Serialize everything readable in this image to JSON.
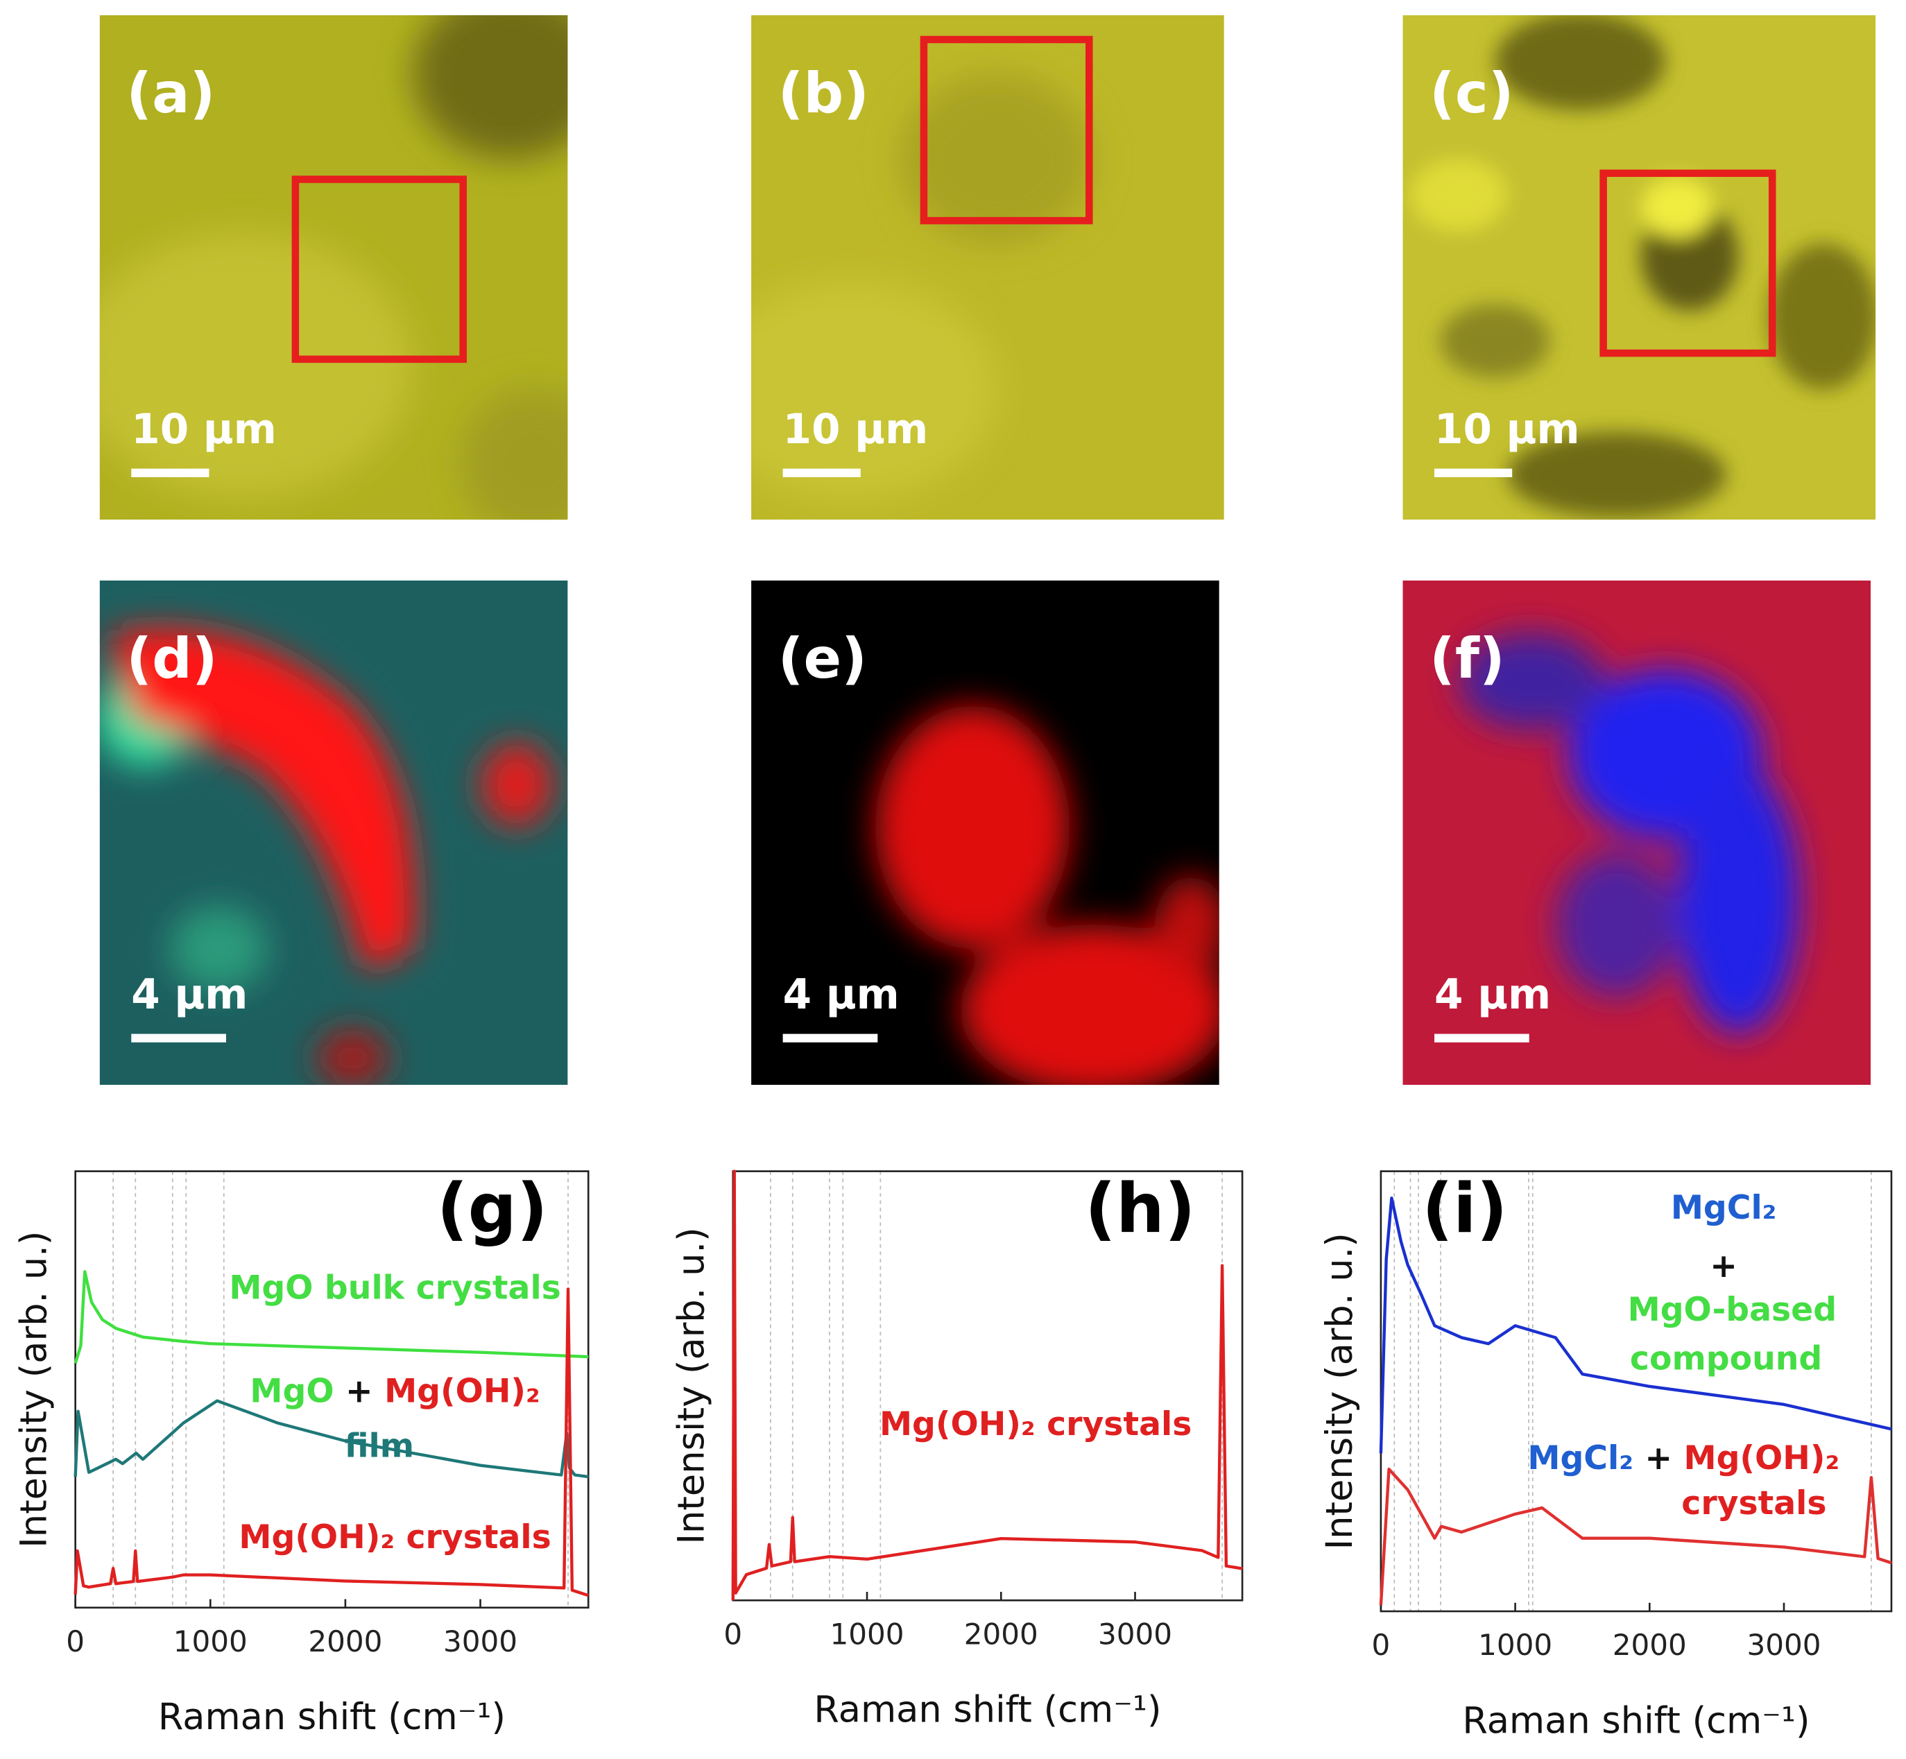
{
  "panels": [
    {
      "label": "(a)",
      "scale_bar": "10 µm"
    },
    {
      "label": "(b)",
      "scale_bar": "10 µm"
    },
    {
      "label": "(c)",
      "scale_bar": "10 µm"
    },
    {
      "label": "(d)",
      "scale_bar": "4 µm"
    },
    {
      "label": "(e)",
      "scale_bar": "4 µm"
    },
    {
      "label": "(f)",
      "scale_bar": "4 µm"
    }
  ],
  "chart_data": [
    {
      "type": "line",
      "label": "(g)",
      "xlabel": "Raman shift (cm⁻¹)",
      "ylabel": "Intensity (arb. u.)",
      "xlim": [
        0,
        3800
      ],
      "xticks": [
        0,
        1000,
        2000,
        3000
      ],
      "ylim": [
        0,
        100
      ],
      "yticks": [],
      "reference_lines": [
        280,
        445,
        720,
        820,
        1100,
        3650
      ],
      "series": [
        {
          "color": "#3fe03f",
          "x": [
            0,
            40,
            70,
            120,
            200,
            300,
            500,
            800,
            1000,
            2000,
            3000,
            3800
          ],
          "values": [
            56,
            60,
            77,
            70,
            66,
            64,
            62,
            61,
            60.5,
            59.5,
            58.5,
            57.5
          ]
        },
        {
          "color": "#1f7878",
          "x": [
            0,
            20,
            100,
            300,
            350,
            450,
            500,
            800,
            1050,
            1500,
            2000,
            3000,
            3600,
            3640,
            3660,
            3700,
            3800
          ],
          "values": [
            30,
            45,
            31,
            34,
            33,
            35.4,
            34,
            42.3,
            47.4,
            42.3,
            38.2,
            32.6,
            30.4,
            40,
            32,
            30.4,
            30
          ]
        },
        {
          "color": "#e02020",
          "x": [
            0,
            15,
            60,
            100,
            260,
            280,
            300,
            430,
            445,
            460,
            720,
            800,
            1000,
            2000,
            3000,
            3620,
            3650,
            3680,
            3800
          ],
          "values": [
            3,
            13,
            5,
            4.7,
            5.5,
            9,
            5.5,
            6,
            13,
            6,
            7,
            7.5,
            7.5,
            6.1,
            5.3,
            4.5,
            73,
            4,
            2.8
          ]
        }
      ],
      "annotations": [
        {
          "parts": [
            {
              "text": "MgO bulk crystals",
              "color": "#44dd44"
            }
          ]
        },
        {
          "parts": [
            {
              "text": "MgO",
              "color": "#44dd44"
            },
            {
              "text": " + ",
              "color": "#111111"
            },
            {
              "text": "Mg(OH)₂",
              "color": "#e02020"
            }
          ]
        },
        {
          "parts": [
            {
              "text": "film",
              "color": "#1f7878"
            }
          ]
        },
        {
          "parts": [
            {
              "text": "Mg(OH)₂ crystals",
              "color": "#e02020"
            }
          ]
        }
      ]
    },
    {
      "type": "line",
      "label": "(h)",
      "xlabel": "Raman shift (cm⁻¹)",
      "ylabel": "Intensity (arb. u.)",
      "xlim": [
        0,
        3800
      ],
      "xticks": [
        0,
        1000,
        2000,
        3000
      ],
      "ylim": [
        0,
        100
      ],
      "yticks": [],
      "reference_lines": [
        280,
        445,
        720,
        820,
        1100,
        3650
      ],
      "series": [
        {
          "color": "#e02020",
          "x": [
            0,
            10,
            20,
            100,
            250,
            270,
            290,
            430,
            445,
            460,
            720,
            1000,
            2000,
            3000,
            3500,
            3620,
            3650,
            3680,
            3800
          ],
          "values": [
            0,
            100,
            1.7,
            6,
            7.5,
            13,
            8,
            9,
            19.3,
            9,
            10.2,
            9.6,
            14.4,
            13.6,
            11.6,
            10,
            78,
            8,
            7.4
          ]
        }
      ],
      "annotations": [
        {
          "parts": [
            {
              "text": "Mg(OH)₂ crystals",
              "color": "#e02020"
            }
          ]
        }
      ]
    },
    {
      "type": "line",
      "label": "(i)",
      "xlabel": "Raman shift (cm⁻¹)",
      "ylabel": "Intensity (arb. u.)",
      "xlim": [
        0,
        3800
      ],
      "xticks": [
        0,
        1000,
        2000,
        3000
      ],
      "ylim": [
        0,
        100
      ],
      "yticks": [],
      "reference_lines": [
        100,
        220,
        280,
        445,
        1100,
        1130,
        3650
      ],
      "series": [
        {
          "color": "#1a30d0",
          "x": [
            0,
            40,
            80,
            150,
            200,
            300,
            400,
            600,
            800,
            1000,
            1300,
            1500,
            2000,
            3000,
            3800
          ],
          "values": [
            35.9,
            80,
            93.9,
            84,
            78.7,
            72,
            64.9,
            62.2,
            60.8,
            64.9,
            62.2,
            53.9,
            51.1,
            47,
            41.4
          ]
        },
        {
          "color": "#e03030",
          "x": [
            0,
            60,
            200,
            400,
            450,
            600,
            1000,
            1200,
            1500,
            2000,
            3000,
            3600,
            3650,
            3700,
            3800
          ],
          "values": [
            1.4,
            32.3,
            27.6,
            16.6,
            19.3,
            18,
            22.1,
            23.5,
            16.6,
            16.6,
            14.6,
            12.4,
            30.4,
            12,
            11
          ]
        }
      ],
      "annotations": [
        {
          "parts": [
            {
              "text": "MgCl₂",
              "color": "#1f5fd0"
            }
          ]
        },
        {
          "parts": [
            {
              "text": "+",
              "color": "#111111"
            }
          ]
        },
        {
          "parts": [
            {
              "text": "MgO-based",
              "color": "#44dd44"
            }
          ]
        },
        {
          "parts": [
            {
              "text": "compound",
              "color": "#44dd44"
            }
          ]
        },
        {
          "parts": [
            {
              "text": "MgCl₂",
              "color": "#1f5fd0"
            },
            {
              "text": " + ",
              "color": "#111111"
            },
            {
              "text": "Mg(OH)₂",
              "color": "#e02020"
            }
          ]
        },
        {
          "parts": [
            {
              "text": "crystals",
              "color": "#e02020"
            }
          ]
        }
      ]
    }
  ]
}
